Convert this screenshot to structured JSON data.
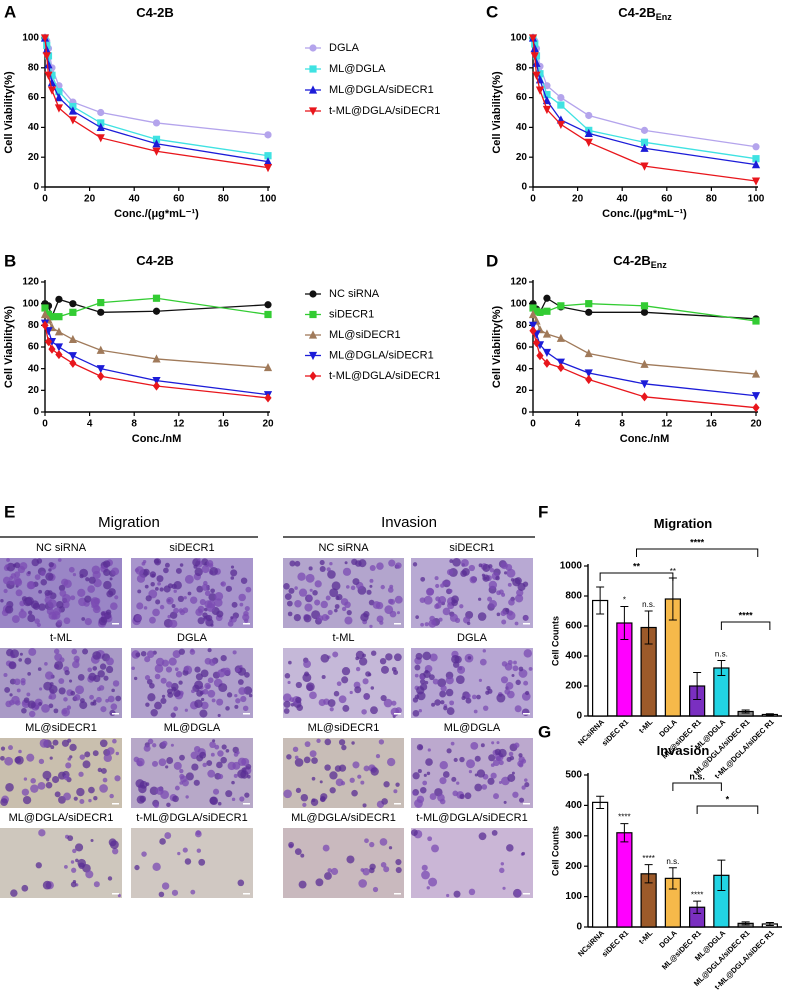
{
  "chart_data": [
    {
      "type": "line",
      "panel_label": "A",
      "title": "C4-2B",
      "xlabel": "Conc./(μg*mL⁻¹)",
      "ylabel": "Cell Viability(%)",
      "x": [
        0,
        0.78,
        1.56,
        3.125,
        6.25,
        12.5,
        25,
        50,
        100
      ],
      "xlim": [
        0,
        100
      ],
      "xticks": [
        0,
        20,
        40,
        60,
        80,
        100
      ],
      "ylim": [
        0,
        100
      ],
      "yticks": [
        0,
        20,
        40,
        60,
        80,
        100
      ],
      "grid": false,
      "series": [
        {
          "name": "DGLA",
          "color": "#b4a4ec",
          "marker": "circle",
          "values": [
            100,
            98,
            93,
            80,
            68,
            57,
            50,
            43,
            35
          ]
        },
        {
          "name": "ML@DGLA",
          "color": "#3fe2e2",
          "marker": "square",
          "values": [
            100,
            95,
            88,
            75,
            64,
            54,
            43,
            32,
            21
          ]
        },
        {
          "name": "ML@DGLA/siDECR1",
          "color": "#1c1cd8",
          "marker": "triangle-up",
          "values": [
            100,
            92,
            82,
            70,
            60,
            51,
            40,
            29,
            17
          ]
        },
        {
          "name": "t-ML@DGLA/siDECR1",
          "color": "#e8161c",
          "marker": "triangle-down",
          "values": [
            100,
            88,
            75,
            65,
            53,
            45,
            33,
            24,
            13
          ]
        }
      ]
    },
    {
      "type": "line",
      "panel_label": "C",
      "title": "C4-2B",
      "title_subscript": "Enz",
      "xlabel": "Conc./(μg*mL⁻¹)",
      "ylabel": "Cell Viability(%)",
      "x": [
        0,
        0.78,
        1.56,
        3.125,
        6.25,
        12.5,
        25,
        50,
        100
      ],
      "xlim": [
        0,
        100
      ],
      "xticks": [
        0,
        20,
        40,
        60,
        80,
        100
      ],
      "ylim": [
        0,
        100
      ],
      "yticks": [
        0,
        20,
        40,
        60,
        80,
        100
      ],
      "grid": false,
      "series": [
        {
          "color": "#b4a4ec",
          "marker": "circle",
          "values": [
            100,
            98,
            93,
            81,
            68,
            60,
            48,
            38,
            27
          ]
        },
        {
          "color": "#3fe2e2",
          "marker": "square",
          "values": [
            100,
            96,
            88,
            76,
            62,
            55,
            38,
            30,
            19
          ]
        },
        {
          "color": "#1c1cd8",
          "marker": "triangle-up",
          "values": [
            100,
            93,
            83,
            72,
            58,
            45,
            36,
            26,
            15
          ]
        },
        {
          "color": "#e8161c",
          "marker": "triangle-down",
          "values": [
            100,
            88,
            75,
            65,
            52,
            42,
            30,
            14,
            4
          ]
        }
      ]
    },
    {
      "type": "line",
      "panel_label": "B",
      "title": "C4-2B",
      "xlabel": "Conc./nM",
      "ylabel": "Cell Viability(%)",
      "x": [
        0,
        0.3125,
        0.625,
        1.25,
        2.5,
        5,
        10,
        20
      ],
      "xlim": [
        0,
        20
      ],
      "xticks": [
        0,
        4,
        8,
        12,
        16,
        20
      ],
      "ylim": [
        0,
        120
      ],
      "yticks": [
        0,
        20,
        40,
        60,
        80,
        100,
        120
      ],
      "grid": false,
      "series": [
        {
          "name": "NC siRNA",
          "color": "#111111",
          "marker": "circle",
          "values": [
            100,
            98,
            88,
            104,
            100,
            92,
            93,
            99
          ]
        },
        {
          "name": "siDECR1",
          "color": "#33cc33",
          "marker": "square",
          "values": [
            96,
            90,
            88,
            88,
            92,
            101,
            105,
            90
          ]
        },
        {
          "name": "ML@siDECR1",
          "color": "#a07a5a",
          "marker": "triangle-up",
          "values": [
            90,
            85,
            78,
            74,
            67,
            57,
            49,
            41
          ]
        },
        {
          "name": "ML@DGLA/siDECR1",
          "color": "#1c1cd8",
          "marker": "triangle-down",
          "values": [
            82,
            75,
            65,
            60,
            52,
            40,
            29,
            16
          ]
        },
        {
          "name": "t-ML@DGLA/siDECR1",
          "color": "#e8161c",
          "marker": "diamond",
          "values": [
            80,
            65,
            58,
            53,
            45,
            33,
            24,
            13
          ]
        }
      ]
    },
    {
      "type": "line",
      "panel_label": "D",
      "title": "C4-2B",
      "title_subscript": "Enz",
      "xlabel": "Conc./nM",
      "ylabel": "Cell Viability(%)",
      "x": [
        0,
        0.3125,
        0.625,
        1.25,
        2.5,
        5,
        10,
        20
      ],
      "xlim": [
        0,
        20
      ],
      "xticks": [
        0,
        4,
        8,
        12,
        16,
        20
      ],
      "ylim": [
        0,
        120
      ],
      "yticks": [
        0,
        20,
        40,
        60,
        80,
        100,
        120
      ],
      "grid": false,
      "series": [
        {
          "color": "#111111",
          "marker": "circle",
          "values": [
            100,
            95,
            92,
            105,
            97,
            92,
            92,
            86
          ]
        },
        {
          "color": "#33cc33",
          "marker": "square",
          "values": [
            96,
            93,
            92,
            93,
            98,
            100,
            98,
            84
          ]
        },
        {
          "color": "#a07a5a",
          "marker": "triangle-up",
          "values": [
            90,
            84,
            76,
            72,
            68,
            54,
            44,
            35
          ]
        },
        {
          "color": "#1c1cd8",
          "marker": "triangle-down",
          "values": [
            80,
            72,
            62,
            55,
            46,
            36,
            26,
            15
          ]
        },
        {
          "color": "#e8161c",
          "marker": "diamond",
          "values": [
            75,
            64,
            52,
            45,
            41,
            30,
            14,
            4
          ]
        }
      ]
    },
    {
      "type": "bar",
      "panel_label": "F",
      "title": "Migration",
      "ylabel": "Cell Counts",
      "categories": [
        "NCsiRNA",
        "siDEC R1",
        "t-ML",
        "DGLA",
        "ML@siDEC R1",
        "ML@DGLA",
        "ML@DGLA/siDEC R1",
        "t-ML@DGLA/siDEC R1"
      ],
      "values": [
        770,
        620,
        590,
        780,
        200,
        320,
        30,
        10
      ],
      "errors": [
        90,
        110,
        110,
        140,
        90,
        50,
        10,
        5
      ],
      "colors": [
        "#ffffff",
        "#ff00ff",
        "#9c5a2a",
        "#f6b94a",
        "#7a2fc0",
        "#22d4e4",
        "#888888",
        "#ffffff"
      ],
      "value_annotations": [
        null,
        "*",
        "n.s.",
        "**",
        null,
        "n.s.",
        null,
        null
      ],
      "brackets": [
        "**",
        "****",
        "****"
      ],
      "ylim": [
        0,
        1000
      ],
      "yticks": [
        0,
        200,
        400,
        600,
        800,
        1000
      ],
      "grid": false
    },
    {
      "type": "bar",
      "panel_label": "G",
      "title": "Invasion",
      "ylabel": "Cell Counts",
      "categories": [
        "NCsiRNA",
        "siDEC R1",
        "t-ML",
        "DGLA",
        "ML@siDEC R1",
        "ML@DGLA",
        "ML@DGLA/siDEC R1",
        "t-ML@DGLA/siDEC R1"
      ],
      "values": [
        410,
        310,
        175,
        160,
        65,
        170,
        12,
        10
      ],
      "errors": [
        20,
        30,
        30,
        35,
        20,
        50,
        5,
        5
      ],
      "colors": [
        "#ffffff",
        "#ff00ff",
        "#9c5a2a",
        "#f6b94a",
        "#7a2fc0",
        "#22d4e4",
        "#888888",
        "#ffffff"
      ],
      "value_annotations": [
        null,
        "****",
        "****",
        "n.s.",
        "****",
        null,
        null,
        null
      ],
      "brackets": [
        "n.s.",
        "*"
      ],
      "ylim": [
        0,
        500
      ],
      "yticks": [
        0,
        100,
        200,
        300,
        400,
        500
      ],
      "grid": false
    }
  ],
  "figure_e": {
    "panel_label": "E",
    "groups": [
      "Migration",
      "Invasion"
    ],
    "labels": [
      "NC siRNA",
      "siDECR1",
      "t-ML",
      "DGLA",
      "ML@siDECR1",
      "ML@DGLA",
      "ML@DGLA/siDECR1",
      "t-ML@DGLA/siDECR1"
    ]
  }
}
